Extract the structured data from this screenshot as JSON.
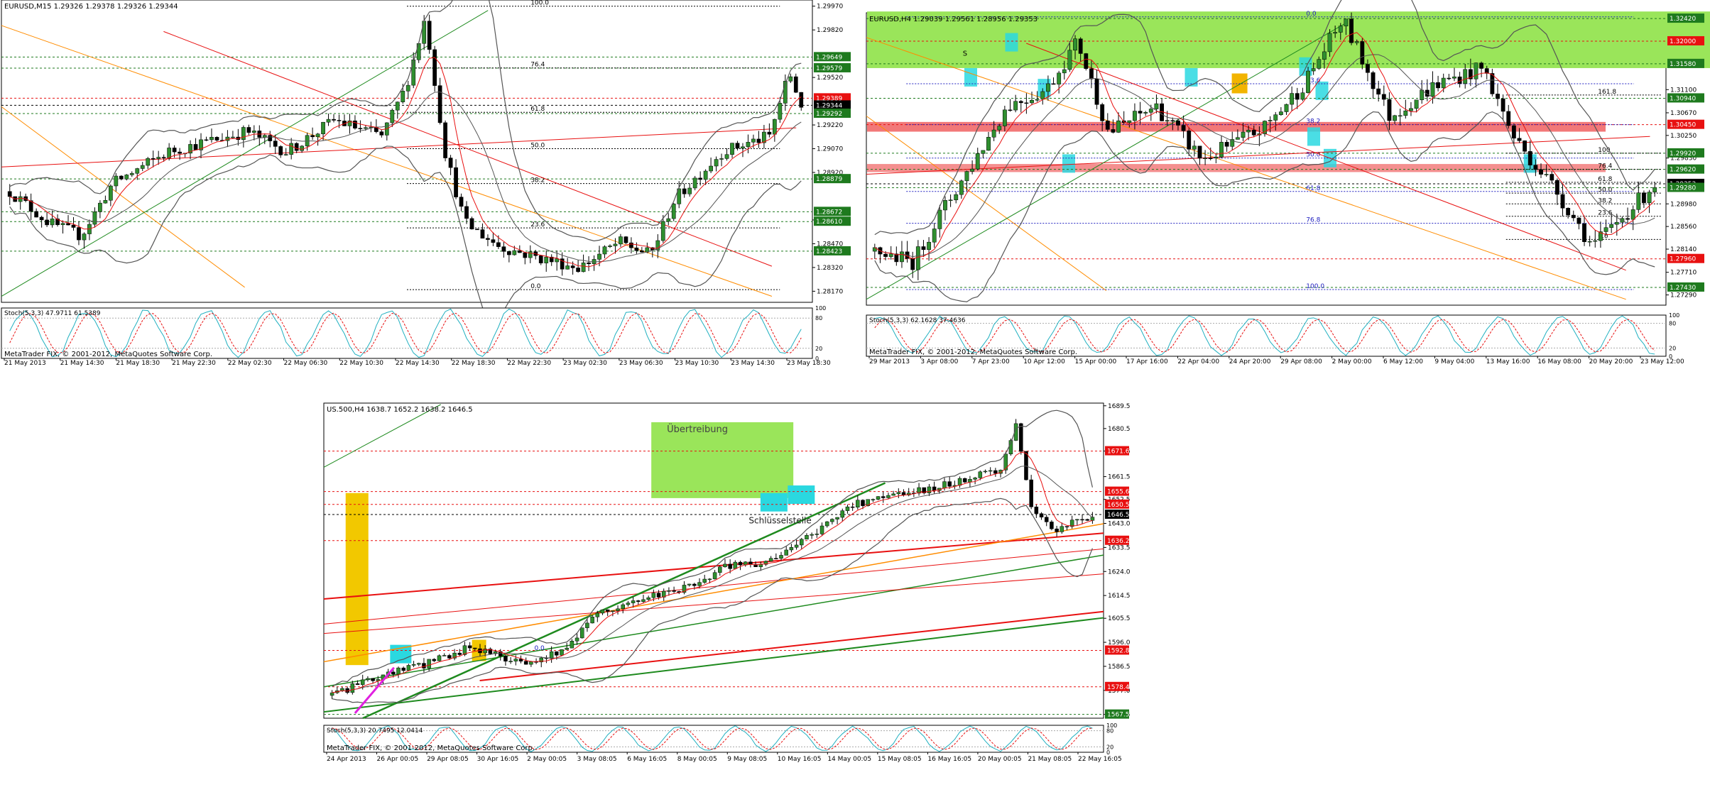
{
  "charts": [
    {
      "header": "EURUSD,M15  1.29326 1.29378 1.29326 1.29344",
      "price_min": 1.281,
      "price_max": 1.3,
      "axis_ticks": [
        "1.29970",
        "1.29820",
        "1.29520",
        "1.29220",
        "1.29070",
        "1.28920",
        "1.28620",
        "1.28470",
        "1.28320",
        "1.28170"
      ],
      "price_boxes": [
        {
          "label": "1.29649",
          "value": 1.29649,
          "color": "#1e7a1e"
        },
        {
          "label": "1.29579",
          "value": 1.29579,
          "color": "#1e7a1e"
        },
        {
          "label": "1.29389",
          "value": 1.29389,
          "color": "#e81010"
        },
        {
          "label": "1.29344",
          "value": 1.29344,
          "color": "#000000"
        },
        {
          "label": "1.29292",
          "value": 1.29292,
          "color": "#1e7a1e"
        },
        {
          "label": "1.28879",
          "value": 1.28879,
          "color": "#1e7a1e"
        },
        {
          "label": "1.28672",
          "value": 1.28672,
          "color": "#1e7a1e"
        },
        {
          "label": "1.28610",
          "value": 1.2861,
          "color": "#1e7a1e"
        },
        {
          "label": "1.28423",
          "value": 1.28423,
          "color": "#1e7a1e"
        }
      ],
      "fib_levels": [
        {
          "label": "100.0",
          "value": 1.2997
        },
        {
          "label": "76.4",
          "value": 1.2958
        },
        {
          "label": "61.8",
          "value": 1.293
        },
        {
          "label": "50.0",
          "value": 1.2907
        },
        {
          "label": "38.2",
          "value": 1.2885
        },
        {
          "label": "23.6",
          "value": 1.2857
        },
        {
          "label": "0.0",
          "value": 1.2818
        }
      ],
      "osc_header": "Stoch(5,3,3) 47.9711 61.5389",
      "osc_ticks": [
        "100",
        "80",
        "20",
        "0"
      ],
      "copyright": "MetaTrader FIX, © 2001-2012, MetaQuotes Software Corp.",
      "time_labels": [
        "21 May 2013",
        "21 May 14:30",
        "21 May 18:30",
        "21 May 22:30",
        "22 May 02:30",
        "22 May 06:30",
        "22 May 10:30",
        "22 May 14:30",
        "22 May 18:30",
        "22 May 22:30",
        "23 May 02:30",
        "23 May 06:30",
        "23 May 10:30",
        "23 May 14:30",
        "23 May 18:30"
      ],
      "annotations": []
    },
    {
      "header": "EURUSD,H4  1.29039 1.29561 1.28956 1.29353",
      "price_min": 1.271,
      "price_max": 1.325,
      "axis_ticks": [
        "1.31100",
        "1.30670",
        "1.30250",
        "1.29830",
        "1.28980",
        "1.28560",
        "1.28140",
        "1.27710",
        "1.27290"
      ],
      "price_boxes": [
        {
          "label": "1.32420",
          "value": 1.3242,
          "color": "#1e7a1e"
        },
        {
          "label": "1.32000",
          "value": 1.32,
          "color": "#e81010"
        },
        {
          "label": "1.31580",
          "value": 1.3158,
          "color": "#1e7a1e"
        },
        {
          "label": "1.30940",
          "value": 1.3094,
          "color": "#1e7a1e"
        },
        {
          "label": "1.30450",
          "value": 1.3045,
          "color": "#e81010"
        },
        {
          "label": "1.29920",
          "value": 1.2992,
          "color": "#1e7a1e"
        },
        {
          "label": "1.29620",
          "value": 1.2962,
          "color": "#1e7a1e"
        },
        {
          "label": "1.29353",
          "value": 1.29353,
          "color": "#000000"
        },
        {
          "label": "1.29280",
          "value": 1.2928,
          "color": "#1e7a1e"
        },
        {
          "label": "1.27960",
          "value": 1.2796,
          "color": "#e81010"
        },
        {
          "label": "1.27430",
          "value": 1.2743,
          "color": "#1e7a1e"
        }
      ],
      "fib_levels": [
        {
          "label": "0.0",
          "value": 1.3245
        },
        {
          "label": "23.6",
          "value": 1.3121
        },
        {
          "label": "38.2",
          "value": 1.3045
        },
        {
          "label": "50.0",
          "value": 1.2983
        },
        {
          "label": "61.8",
          "value": 1.2921
        },
        {
          "label": "76.8",
          "value": 1.2862
        },
        {
          "label": "100.0",
          "value": 1.2739
        }
      ],
      "fib2_levels": [
        {
          "label": "161.8",
          "value": 1.31
        },
        {
          "label": "100",
          "value": 1.2992
        },
        {
          "label": "76.4",
          "value": 1.2962
        },
        {
          "label": "61.8",
          "value": 1.2938
        },
        {
          "label": "50.0",
          "value": 1.2918
        },
        {
          "label": "38.2",
          "value": 1.2898
        },
        {
          "label": "23.6",
          "value": 1.2875
        },
        {
          "label": "0.0",
          "value": 1.2832
        }
      ],
      "osc_header": "Stoch(5,3,3) 62.1628 37.4636",
      "osc_ticks": [
        "100",
        "80",
        "20",
        "0"
      ],
      "copyright": "MetaTrader FIX, © 2001-2012, MetaQuotes Software Corp.",
      "time_labels": [
        "29 Mar 2013",
        "3 Apr 08:00",
        "7 Apr 23:00",
        "10 Apr 12:00",
        "15 Apr 00:00",
        "17 Apr 16:00",
        "22 Apr 04:00",
        "24 Apr 20:00",
        "29 Apr 08:00",
        "2 May 00:00",
        "6 May 12:00",
        "9 May 04:00",
        "13 May 16:00",
        "16 May 08:00",
        "20 May 20:00",
        "23 May 12:00"
      ],
      "annotations": [
        "S"
      ]
    },
    {
      "header": "US.500,H4  1638.7 1652.2 1638.2 1646.5",
      "price_min": 1566,
      "price_max": 1690,
      "axis_ticks": [
        "1689.5",
        "1680.5",
        "1671.6",
        "1661.5",
        "1652.5",
        "1643.0",
        "1633.5",
        "1624.0",
        "1614.5",
        "1605.5",
        "1596.0",
        "1586.5",
        "1577.0",
        "1567.5"
      ],
      "price_boxes": [
        {
          "label": "1671.6",
          "value": 1671.6,
          "color": "#e81010"
        },
        {
          "label": "1655.6",
          "value": 1655.6,
          "color": "#e81010"
        },
        {
          "label": "1650.5",
          "value": 1650.5,
          "color": "#e81010"
        },
        {
          "label": "1646.5",
          "value": 1646.5,
          "color": "#000000"
        },
        {
          "label": "1636.2",
          "value": 1636.2,
          "color": "#e81010"
        },
        {
          "label": "1592.8",
          "value": 1592.8,
          "color": "#e81010"
        },
        {
          "label": "1578.4",
          "value": 1578.4,
          "color": "#e81010"
        },
        {
          "label": "1567.5",
          "value": 1567.5,
          "color": "#1e7a1e"
        }
      ],
      "fib_levels": [],
      "osc_header": "Stoch(5,3,3) 20.7495 12.0414",
      "osc_ticks": [
        "100",
        "80",
        "20",
        "0"
      ],
      "copyright": "MetaTrader FIX, © 2001-2012, MetaQuotes Software Corp.",
      "time_labels": [
        "24 Apr 2013",
        "26 Apr 00:05",
        "29 Apr 08:05",
        "30 Apr 16:05",
        "2 May 00:05",
        "3 May 08:05",
        "6 May 16:05",
        "8 May 00:05",
        "9 May 08:05",
        "10 May 16:05",
        "14 May 00:05",
        "15 May 08:05",
        "16 May 16:05",
        "20 May 00:05",
        "21 May 08:05",
        "22 May 16:05"
      ],
      "annotations": [
        "Übertreibung",
        "Schlüsselstelle",
        "0.0"
      ]
    }
  ]
}
